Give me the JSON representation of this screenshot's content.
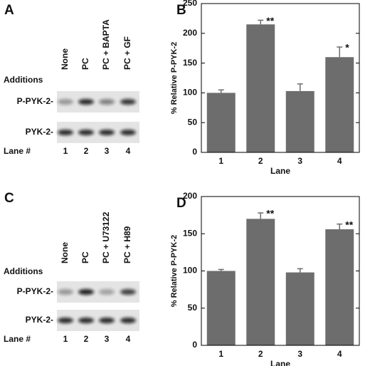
{
  "panels": [
    {
      "letter": "A",
      "row_header": "Additions",
      "conditions": [
        "None",
        "PC",
        "PC + BAPTA",
        "PC + GF"
      ],
      "blot_labels": [
        "P-PYK-2-",
        "PYK-2-"
      ],
      "lane_header": "Lane #",
      "lanes": [
        "1",
        "2",
        "3",
        "4"
      ]
    },
    {
      "letter": "C",
      "row_header": "Additions",
      "conditions": [
        "None",
        "PC",
        "PC + U73122",
        "PC + H89"
      ],
      "blot_labels": [
        "P-PYK-2-",
        "PYK-2-"
      ],
      "lane_header": "Lane #",
      "lanes": [
        "1",
        "2",
        "3",
        "4"
      ]
    }
  ],
  "chart_data": [
    {
      "type": "bar",
      "panel": "B",
      "xlabel": "Lane",
      "ylabel": "% Relative P-PYK-2",
      "categories": [
        "1",
        "2",
        "3",
        "4"
      ],
      "values": [
        100,
        215,
        103,
        160
      ],
      "errors": [
        5,
        7,
        12,
        17
      ],
      "value_annotations": [
        null,
        "**",
        null,
        "*"
      ],
      "color": "#6d6d6d",
      "ylim": [
        0,
        250
      ],
      "yticks": [
        0,
        50,
        100,
        150,
        200,
        250
      ]
    },
    {
      "type": "bar",
      "panel": "D",
      "xlabel": "Lane",
      "ylabel": "% Relative P-PYK-2",
      "categories": [
        "1",
        "2",
        "3",
        "4"
      ],
      "values": [
        100,
        170,
        98,
        156
      ],
      "errors": [
        2,
        8,
        5,
        7
      ],
      "value_annotations": [
        null,
        "**",
        null,
        "**"
      ],
      "color": "#6d6d6d",
      "ylim": [
        0,
        200
      ],
      "yticks": [
        0,
        50,
        100,
        150,
        200
      ]
    }
  ]
}
